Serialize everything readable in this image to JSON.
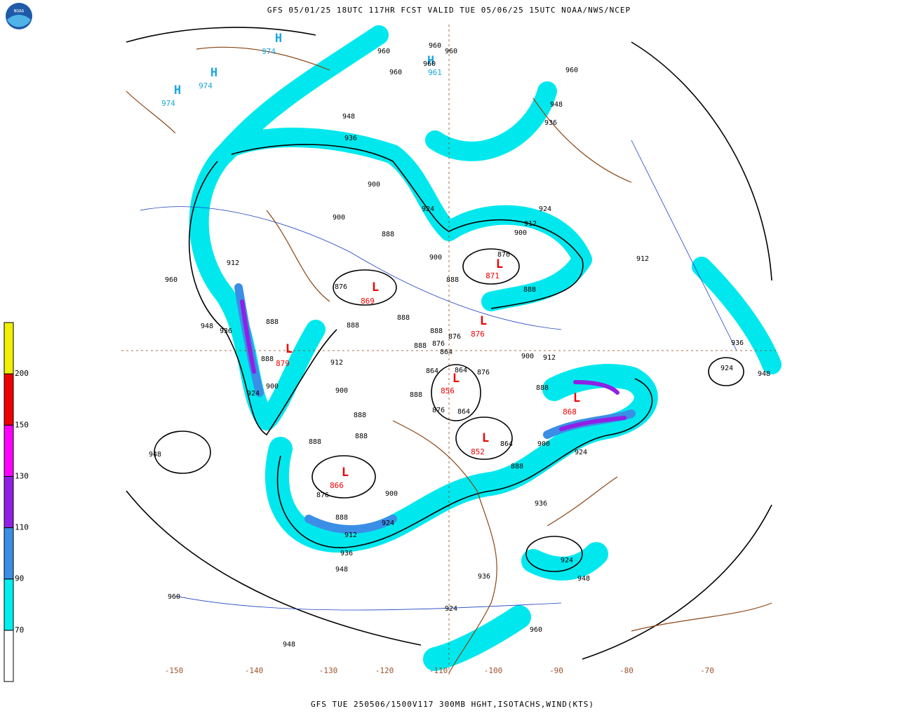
{
  "header": {
    "title": "GFS 05/01/25 18UTC 117HR FCST VALID TUE 05/06/25 15UTC NOAA/NWS/NCEP",
    "logo": "NOAA"
  },
  "footer": "GFS TUE 250506/1500V117 300MB HGHT,ISOTACHS,WIND(KTS)",
  "colorbar": {
    "ticks": [
      70,
      90,
      110,
      130,
      150,
      200
    ],
    "colors": [
      "#ffffff",
      "#00eeee",
      "#3a8ee6",
      "#9020e6",
      "#ff00ff",
      "#ee0000",
      "#f0f000"
    ]
  },
  "map": {
    "low_symbol": "L",
    "high_symbol": "H",
    "lows": [
      869,
      871,
      879,
      876,
      856,
      868,
      852,
      866
    ],
    "highs": [
      974,
      974,
      974,
      961
    ],
    "contour_labels": [
      960,
      960,
      960,
      960,
      960,
      960,
      948,
      948,
      936,
      936,
      924,
      924,
      912,
      900,
      900,
      900,
      888,
      876,
      900,
      888,
      876,
      888,
      888,
      888,
      888,
      888,
      876,
      888,
      876,
      864,
      864,
      864,
      876,
      912,
      900,
      900,
      888,
      888,
      876,
      864,
      912,
      960,
      948,
      936,
      888,
      924,
      888,
      888,
      888,
      900,
      876,
      888,
      912,
      924,
      936,
      948,
      960,
      948,
      936,
      924,
      864,
      900,
      888,
      924,
      948,
      936,
      924,
      960,
      900,
      912,
      912,
      936,
      924,
      948,
      948
    ],
    "longitude_labels": [
      -150,
      -140,
      -130,
      -120,
      -110,
      -100,
      -90,
      -80,
      -70
    ]
  }
}
